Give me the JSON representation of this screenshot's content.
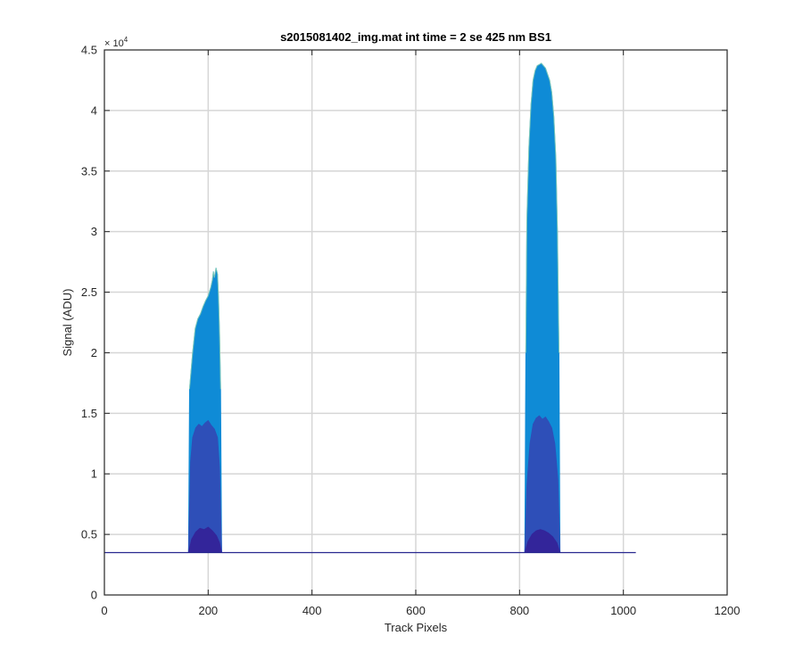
{
  "chart_data": {
    "type": "area",
    "title": "s2015081402_img.mat int time = 2 se  425 nm BS1",
    "xlabel": "Track Pixels",
    "ylabel": "Signal (ADU)",
    "xlim": [
      0,
      1200
    ],
    "ylim": [
      0,
      45000
    ],
    "x_ticks": [
      0,
      200,
      400,
      600,
      800,
      1000,
      1200
    ],
    "x_tick_labels": [
      "0",
      "200",
      "400",
      "600",
      "800",
      "1000",
      "1200"
    ],
    "y_ticks": [
      0,
      5000,
      10000,
      15000,
      20000,
      25000,
      30000,
      35000,
      40000,
      45000
    ],
    "y_tick_labels": [
      "0",
      "0.5",
      "1",
      "1.5",
      "2",
      "2.5",
      "3",
      "3.5",
      "4",
      "4.5"
    ],
    "y_exponent_label": "× 10",
    "y_exponent_power": "4",
    "grid": true,
    "baseline": {
      "x_start": 0,
      "x_end": 1024,
      "value": 3500
    },
    "colors": {
      "upper": "#0f8bd6",
      "middle": "#2e4fb8",
      "lower": "#33259a",
      "highlight": "#8fd3b0",
      "baseline": "#282890",
      "grid": "#d6d6d6",
      "axis": "#262626"
    },
    "series": [
      {
        "name": "",
        "color": "#0f8bd6",
        "points": [
          [
            162,
            3500
          ],
          [
            164,
            17000
          ],
          [
            166,
            18000
          ],
          [
            170,
            20000
          ],
          [
            175,
            22000
          ],
          [
            180,
            22800
          ],
          [
            185,
            23200
          ],
          [
            190,
            23800
          ],
          [
            195,
            24300
          ],
          [
            200,
            24700
          ],
          [
            205,
            25400
          ],
          [
            208,
            26000
          ],
          [
            210,
            26700
          ],
          [
            212,
            26200
          ],
          [
            215,
            27000
          ],
          [
            218,
            26500
          ],
          [
            220,
            24500
          ],
          [
            222,
            21500
          ],
          [
            224,
            17000
          ],
          [
            226,
            3500
          ]
        ]
      },
      {
        "name": "",
        "color": "#2e4fb8",
        "points": [
          [
            162,
            3500
          ],
          [
            166,
            11000
          ],
          [
            170,
            13000
          ],
          [
            176,
            13800
          ],
          [
            182,
            14100
          ],
          [
            188,
            13900
          ],
          [
            194,
            14200
          ],
          [
            200,
            14400
          ],
          [
            206,
            14000
          ],
          [
            212,
            13700
          ],
          [
            218,
            13000
          ],
          [
            222,
            10500
          ],
          [
            226,
            3500
          ]
        ]
      },
      {
        "name": "",
        "color": "#33259a",
        "points": [
          [
            162,
            3500
          ],
          [
            168,
            4600
          ],
          [
            176,
            5200
          ],
          [
            184,
            5500
          ],
          [
            192,
            5400
          ],
          [
            200,
            5600
          ],
          [
            208,
            5300
          ],
          [
            216,
            4900
          ],
          [
            222,
            4300
          ],
          [
            226,
            3500
          ]
        ]
      },
      {
        "name": "",
        "color": "#0f8bd6",
        "points": [
          [
            810,
            3500
          ],
          [
            812,
            20000
          ],
          [
            814,
            31000
          ],
          [
            818,
            37000
          ],
          [
            822,
            40500
          ],
          [
            826,
            42500
          ],
          [
            830,
            43300
          ],
          [
            834,
            43700
          ],
          [
            838,
            43800
          ],
          [
            842,
            43900
          ],
          [
            846,
            43700
          ],
          [
            850,
            43500
          ],
          [
            854,
            43000
          ],
          [
            858,
            42500
          ],
          [
            862,
            41500
          ],
          [
            866,
            39500
          ],
          [
            870,
            36000
          ],
          [
            873,
            30000
          ],
          [
            876,
            20000
          ],
          [
            878,
            3500
          ]
        ]
      },
      {
        "name": "",
        "color": "#2e4fb8",
        "points": [
          [
            810,
            3500
          ],
          [
            814,
            9000
          ],
          [
            820,
            12500
          ],
          [
            826,
            14100
          ],
          [
            832,
            14600
          ],
          [
            838,
            14800
          ],
          [
            844,
            14500
          ],
          [
            850,
            14700
          ],
          [
            856,
            14300
          ],
          [
            862,
            13800
          ],
          [
            868,
            12500
          ],
          [
            874,
            9500
          ],
          [
            878,
            3500
          ]
        ]
      },
      {
        "name": "",
        "color": "#33259a",
        "points": [
          [
            810,
            3500
          ],
          [
            816,
            4400
          ],
          [
            824,
            5000
          ],
          [
            832,
            5300
          ],
          [
            840,
            5400
          ],
          [
            848,
            5300
          ],
          [
            856,
            5100
          ],
          [
            864,
            4800
          ],
          [
            872,
            4300
          ],
          [
            878,
            3500
          ]
        ]
      }
    ]
  }
}
